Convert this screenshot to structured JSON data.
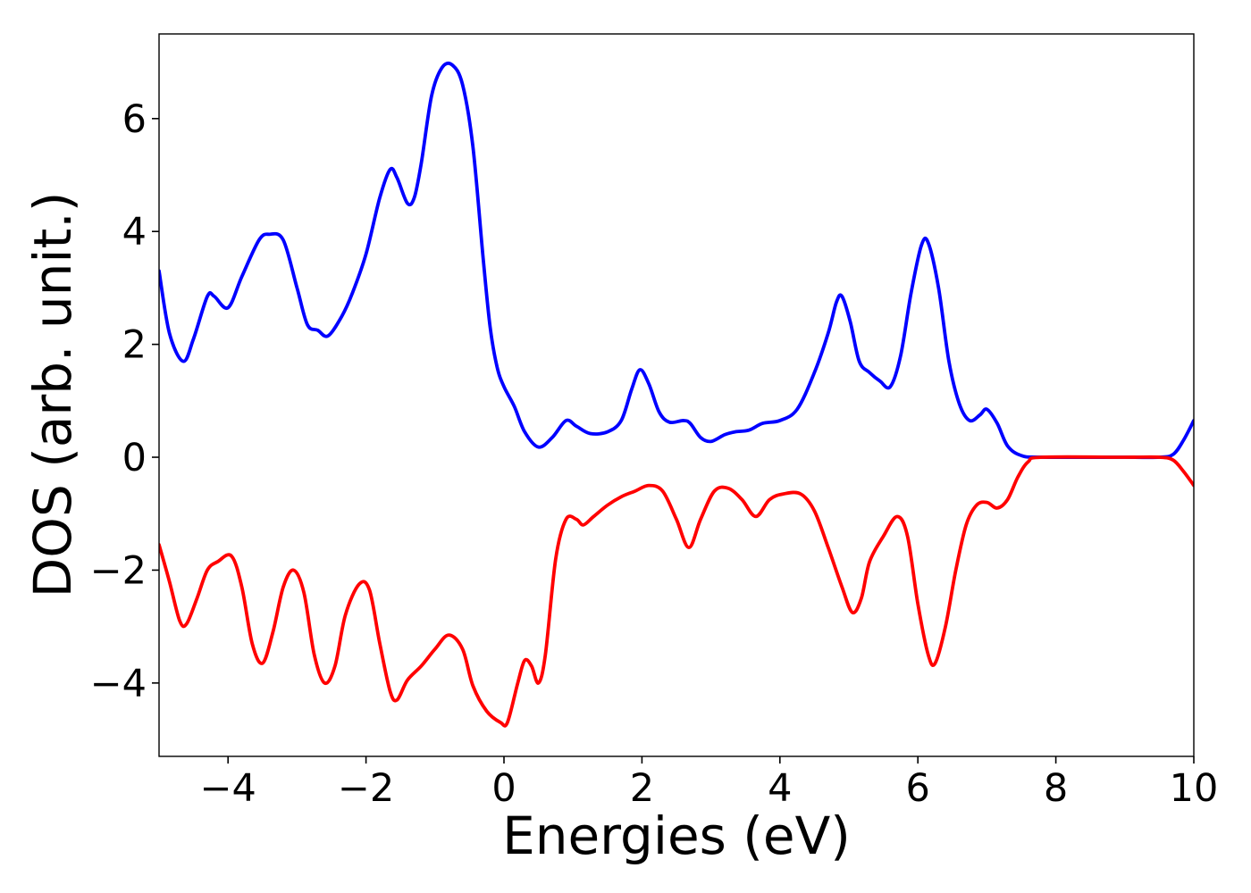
{
  "chart_data": {
    "type": "line",
    "xlabel": "Energies (eV)",
    "ylabel": "DOS (arb. unit.)",
    "xlim": [
      -5,
      10
    ],
    "ylim": [
      -5.3,
      7.5
    ],
    "xticks": [
      -4,
      -2,
      0,
      2,
      4,
      6,
      8,
      10
    ],
    "xtick_labels": [
      "−4",
      "−2",
      "0",
      "2",
      "4",
      "6",
      "8",
      "10"
    ],
    "yticks": [
      -4,
      -2,
      0,
      2,
      4,
      6
    ],
    "ytick_labels": [
      "−4",
      "−2",
      "0",
      "2",
      "4",
      "6"
    ],
    "grid": false,
    "series": [
      {
        "color": "#0000ff",
        "points": [
          [
            -5.0,
            3.3
          ],
          [
            -4.85,
            2.2
          ],
          [
            -4.65,
            1.7
          ],
          [
            -4.5,
            2.1
          ],
          [
            -4.3,
            2.85
          ],
          [
            -4.2,
            2.85
          ],
          [
            -4.0,
            2.65
          ],
          [
            -3.8,
            3.2
          ],
          [
            -3.55,
            3.85
          ],
          [
            -3.4,
            3.95
          ],
          [
            -3.2,
            3.85
          ],
          [
            -3.0,
            3.0
          ],
          [
            -2.85,
            2.35
          ],
          [
            -2.7,
            2.25
          ],
          [
            -2.55,
            2.15
          ],
          [
            -2.35,
            2.5
          ],
          [
            -2.2,
            2.9
          ],
          [
            -2.0,
            3.6
          ],
          [
            -1.8,
            4.6
          ],
          [
            -1.65,
            5.1
          ],
          [
            -1.55,
            4.95
          ],
          [
            -1.4,
            4.5
          ],
          [
            -1.3,
            4.6
          ],
          [
            -1.2,
            5.2
          ],
          [
            -1.05,
            6.4
          ],
          [
            -0.9,
            6.9
          ],
          [
            -0.75,
            6.95
          ],
          [
            -0.6,
            6.6
          ],
          [
            -0.45,
            5.5
          ],
          [
            -0.3,
            3.5
          ],
          [
            -0.2,
            2.3
          ],
          [
            -0.1,
            1.6
          ],
          [
            0.0,
            1.25
          ],
          [
            0.15,
            0.9
          ],
          [
            0.3,
            0.45
          ],
          [
            0.5,
            0.18
          ],
          [
            0.7,
            0.35
          ],
          [
            0.9,
            0.65
          ],
          [
            1.05,
            0.55
          ],
          [
            1.25,
            0.42
          ],
          [
            1.5,
            0.45
          ],
          [
            1.7,
            0.65
          ],
          [
            1.85,
            1.2
          ],
          [
            1.97,
            1.55
          ],
          [
            2.1,
            1.3
          ],
          [
            2.25,
            0.8
          ],
          [
            2.4,
            0.62
          ],
          [
            2.6,
            0.65
          ],
          [
            2.7,
            0.6
          ],
          [
            2.85,
            0.35
          ],
          [
            3.0,
            0.28
          ],
          [
            3.2,
            0.4
          ],
          [
            3.35,
            0.45
          ],
          [
            3.55,
            0.48
          ],
          [
            3.75,
            0.6
          ],
          [
            4.0,
            0.65
          ],
          [
            4.25,
            0.85
          ],
          [
            4.5,
            1.5
          ],
          [
            4.7,
            2.2
          ],
          [
            4.82,
            2.75
          ],
          [
            4.9,
            2.85
          ],
          [
            5.02,
            2.4
          ],
          [
            5.15,
            1.7
          ],
          [
            5.3,
            1.5
          ],
          [
            5.45,
            1.35
          ],
          [
            5.6,
            1.25
          ],
          [
            5.75,
            1.8
          ],
          [
            5.9,
            2.9
          ],
          [
            6.05,
            3.75
          ],
          [
            6.15,
            3.8
          ],
          [
            6.3,
            3.0
          ],
          [
            6.45,
            1.7
          ],
          [
            6.6,
            0.95
          ],
          [
            6.75,
            0.65
          ],
          [
            6.9,
            0.75
          ],
          [
            7.0,
            0.85
          ],
          [
            7.15,
            0.6
          ],
          [
            7.3,
            0.2
          ],
          [
            7.5,
            0.03
          ],
          [
            7.8,
            0.0
          ],
          [
            9.0,
            0.0
          ],
          [
            9.5,
            0.0
          ],
          [
            9.7,
            0.05
          ],
          [
            9.85,
            0.3
          ],
          [
            10.0,
            0.65
          ]
        ]
      },
      {
        "color": "#ff0000",
        "points": [
          [
            -5.0,
            -1.55
          ],
          [
            -4.85,
            -2.2
          ],
          [
            -4.7,
            -2.9
          ],
          [
            -4.6,
            -2.95
          ],
          [
            -4.45,
            -2.5
          ],
          [
            -4.3,
            -2.0
          ],
          [
            -4.15,
            -1.85
          ],
          [
            -3.95,
            -1.75
          ],
          [
            -3.8,
            -2.3
          ],
          [
            -3.65,
            -3.3
          ],
          [
            -3.5,
            -3.65
          ],
          [
            -3.35,
            -3.1
          ],
          [
            -3.2,
            -2.3
          ],
          [
            -3.05,
            -2.0
          ],
          [
            -2.9,
            -2.4
          ],
          [
            -2.75,
            -3.5
          ],
          [
            -2.6,
            -4.0
          ],
          [
            -2.45,
            -3.7
          ],
          [
            -2.3,
            -2.8
          ],
          [
            -2.1,
            -2.25
          ],
          [
            -1.95,
            -2.35
          ],
          [
            -1.8,
            -3.3
          ],
          [
            -1.65,
            -4.15
          ],
          [
            -1.55,
            -4.3
          ],
          [
            -1.4,
            -3.95
          ],
          [
            -1.2,
            -3.7
          ],
          [
            -1.0,
            -3.4
          ],
          [
            -0.8,
            -3.15
          ],
          [
            -0.6,
            -3.4
          ],
          [
            -0.45,
            -4.05
          ],
          [
            -0.25,
            -4.5
          ],
          [
            -0.05,
            -4.7
          ],
          [
            0.05,
            -4.7
          ],
          [
            0.2,
            -4.0
          ],
          [
            0.3,
            -3.6
          ],
          [
            0.4,
            -3.7
          ],
          [
            0.5,
            -4.0
          ],
          [
            0.6,
            -3.5
          ],
          [
            0.75,
            -1.8
          ],
          [
            0.9,
            -1.1
          ],
          [
            1.05,
            -1.1
          ],
          [
            1.15,
            -1.2
          ],
          [
            1.3,
            -1.05
          ],
          [
            1.5,
            -0.85
          ],
          [
            1.7,
            -0.7
          ],
          [
            1.9,
            -0.6
          ],
          [
            2.1,
            -0.5
          ],
          [
            2.3,
            -0.6
          ],
          [
            2.5,
            -1.1
          ],
          [
            2.68,
            -1.6
          ],
          [
            2.85,
            -1.1
          ],
          [
            3.05,
            -0.6
          ],
          [
            3.25,
            -0.55
          ],
          [
            3.45,
            -0.75
          ],
          [
            3.65,
            -1.05
          ],
          [
            3.85,
            -0.75
          ],
          [
            4.05,
            -0.65
          ],
          [
            4.3,
            -0.65
          ],
          [
            4.5,
            -0.95
          ],
          [
            4.7,
            -1.6
          ],
          [
            4.9,
            -2.3
          ],
          [
            5.05,
            -2.75
          ],
          [
            5.18,
            -2.5
          ],
          [
            5.3,
            -1.85
          ],
          [
            5.5,
            -1.4
          ],
          [
            5.7,
            -1.05
          ],
          [
            5.85,
            -1.4
          ],
          [
            6.0,
            -2.6
          ],
          [
            6.15,
            -3.5
          ],
          [
            6.25,
            -3.65
          ],
          [
            6.4,
            -3.0
          ],
          [
            6.55,
            -2.0
          ],
          [
            6.7,
            -1.2
          ],
          [
            6.85,
            -0.85
          ],
          [
            7.0,
            -0.8
          ],
          [
            7.15,
            -0.9
          ],
          [
            7.3,
            -0.75
          ],
          [
            7.45,
            -0.35
          ],
          [
            7.6,
            -0.08
          ],
          [
            7.8,
            0.0
          ],
          [
            9.0,
            0.0
          ],
          [
            9.5,
            0.0
          ],
          [
            9.7,
            -0.05
          ],
          [
            9.85,
            -0.25
          ],
          [
            10.0,
            -0.5
          ]
        ]
      }
    ]
  }
}
